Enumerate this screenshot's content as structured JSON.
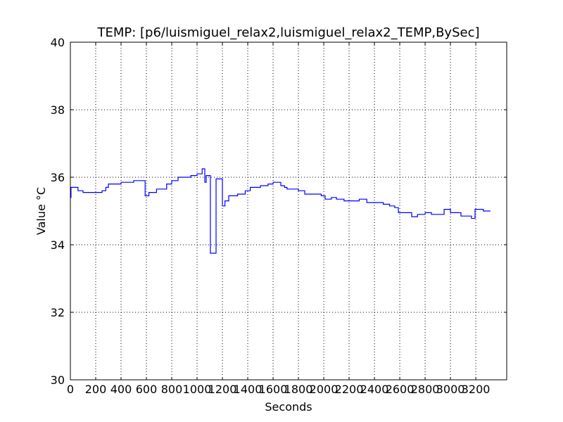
{
  "chart_data": {
    "type": "line",
    "title": "TEMP: [p6/luismiguel_relax2,luismiguel_relax2_TEMP,BySec]",
    "xlabel": "Seconds",
    "ylabel": "Value °C",
    "drawstyle": "steps-post",
    "grid": true,
    "x": [
      0,
      5,
      60,
      100,
      250,
      280,
      300,
      400,
      500,
      590,
      620,
      680,
      760,
      800,
      850,
      950,
      1000,
      1040,
      1061,
      1072,
      1105,
      1150,
      1200,
      1220,
      1250,
      1320,
      1380,
      1420,
      1500,
      1560,
      1600,
      1661,
      1690,
      1710,
      1800,
      1850,
      1980,
      2011,
      2060,
      2100,
      2160,
      2280,
      2340,
      2470,
      2520,
      2560,
      2589,
      2694,
      2740,
      2800,
      2850,
      2950,
      3000,
      3083,
      3166,
      3194,
      3260,
      3316
    ],
    "series": [
      {
        "name": "TEMP",
        "color": "#0000ff",
        "values": [
          35.4,
          35.7,
          35.6,
          35.55,
          35.6,
          35.7,
          35.8,
          35.85,
          35.9,
          35.45,
          35.55,
          35.65,
          35.8,
          35.9,
          36.0,
          36.05,
          36.1,
          36.25,
          35.85,
          36.05,
          33.75,
          35.95,
          35.15,
          35.3,
          35.45,
          35.5,
          35.6,
          35.7,
          35.75,
          35.8,
          35.85,
          35.75,
          35.7,
          35.65,
          35.6,
          35.5,
          35.45,
          35.35,
          35.4,
          35.35,
          35.3,
          35.35,
          35.25,
          35.2,
          35.15,
          35.1,
          34.95,
          34.83,
          34.9,
          34.95,
          34.9,
          35.05,
          34.95,
          34.85,
          34.78,
          35.05,
          35.0,
          35.0
        ]
      }
    ],
    "xlim": [
      0,
      3444
    ],
    "xticks": [
      0,
      200,
      400,
      600,
      800,
      1000,
      1200,
      1400,
      1600,
      1800,
      2000,
      2200,
      2400,
      2600,
      2800,
      3000,
      3200
    ],
    "ylim": [
      30,
      40
    ],
    "yticks": [
      30,
      32,
      34,
      36,
      38,
      40
    ]
  }
}
